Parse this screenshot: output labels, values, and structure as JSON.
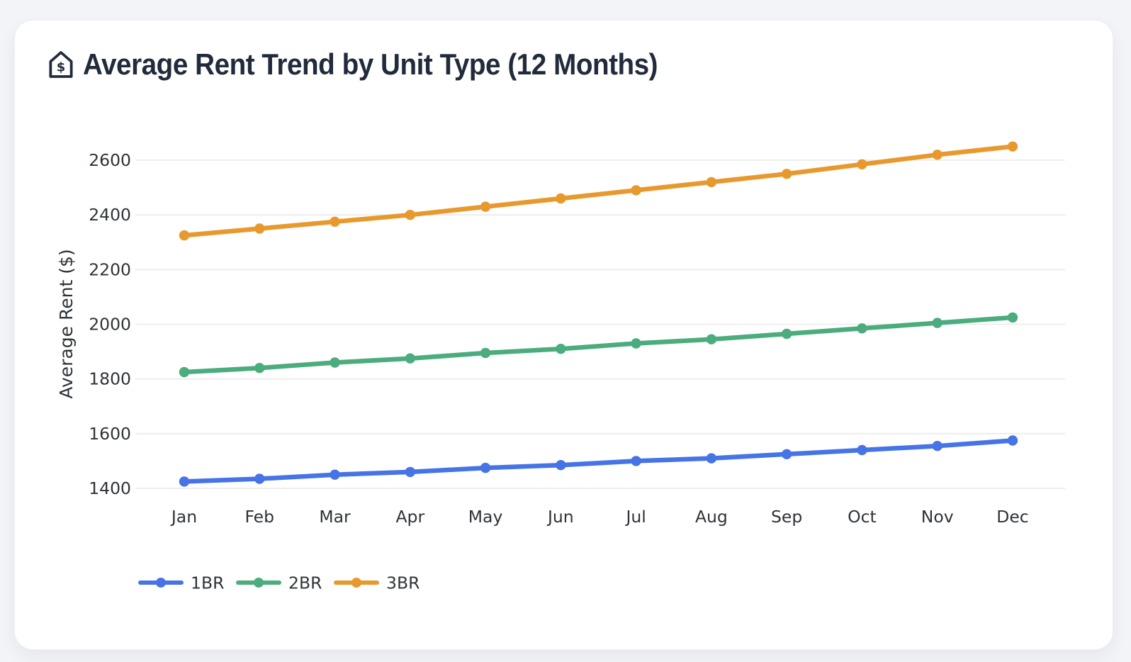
{
  "page": {
    "background_color": "#F2F4F7",
    "card_background_color": "#FFFFFF"
  },
  "header": {
    "icon": "house-dollar-icon",
    "icon_color": "#222B3B",
    "title": "Average Rent Trend by Unit Type (12 Months)",
    "title_color": "#222B3B"
  },
  "chart_data": {
    "type": "line",
    "title": "Average Rent Trend by Unit Type (12 Months)",
    "xlabel": "",
    "ylabel": "Average Rent ($)",
    "categories": [
      "Jan",
      "Feb",
      "Mar",
      "Apr",
      "May",
      "Jun",
      "Jul",
      "Aug",
      "Sep",
      "Oct",
      "Nov",
      "Dec"
    ],
    "series": [
      {
        "name": "1BR",
        "color": "#4674E6",
        "values": [
          1425,
          1435,
          1450,
          1460,
          1475,
          1485,
          1500,
          1510,
          1525,
          1540,
          1555,
          1575
        ]
      },
      {
        "name": "2BR",
        "color": "#4BAC7D",
        "values": [
          1825,
          1840,
          1860,
          1875,
          1895,
          1910,
          1930,
          1945,
          1965,
          1985,
          2005,
          2025
        ]
      },
      {
        "name": "3BR",
        "color": "#E8992E",
        "values": [
          2325,
          2350,
          2375,
          2400,
          2430,
          2460,
          2490,
          2520,
          2550,
          2585,
          2620,
          2650
        ]
      }
    ],
    "y_ticks": [
      1400,
      1600,
      1800,
      2000,
      2200,
      2400,
      2600
    ],
    "ylim": [
      1290,
      2730
    ],
    "grid": true,
    "gridline_color": "#ECECEC",
    "axis_text_color": "#2E3338",
    "legend_position": "bottom-left",
    "marker": "circle"
  }
}
